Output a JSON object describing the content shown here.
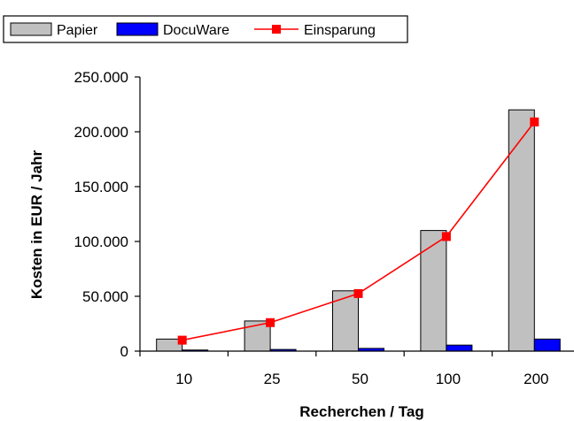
{
  "chart_data": {
    "type": "bar",
    "categories": [
      "10",
      "25",
      "50",
      "100",
      "200"
    ],
    "series": [
      {
        "name": "Papier",
        "kind": "bar",
        "color": "#c0c0c0",
        "values": [
          11000,
          27500,
          55000,
          110000,
          220000
        ]
      },
      {
        "name": "DocuWare",
        "kind": "bar",
        "color": "#0000ff",
        "values": [
          1000,
          1500,
          2500,
          5500,
          11000
        ]
      },
      {
        "name": "Einsparung",
        "kind": "line",
        "color": "#ff0000",
        "values": [
          10000,
          26000,
          52500,
          104500,
          209000
        ]
      }
    ],
    "xlabel": "Recherchen / Tag",
    "ylabel": "Kosten in EUR / Jahr",
    "ylim": [
      0,
      250000
    ],
    "yticks": [
      0,
      50000,
      100000,
      150000,
      200000,
      250000
    ],
    "ytick_labels": [
      "0",
      "50.000",
      "100.000",
      "150.000",
      "200.000",
      "250.000"
    ],
    "grid": false,
    "legend": "top-left"
  }
}
